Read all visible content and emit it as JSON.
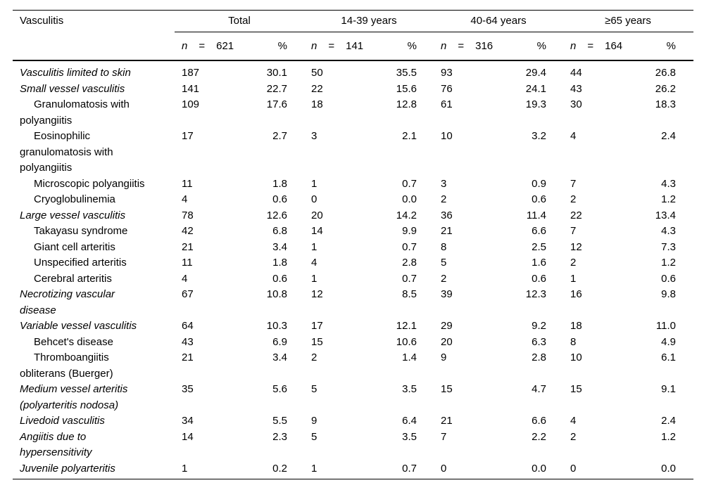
{
  "table": {
    "stub_header": "Vasculitis",
    "groups": [
      {
        "label": "Total",
        "n_label": "n",
        "eq": "=",
        "count": "621",
        "pct_label": "%"
      },
      {
        "label": "14-39 years",
        "n_label": "n",
        "eq": "=",
        "count": "141",
        "pct_label": "%"
      },
      {
        "label": "40-64 years",
        "n_label": "n",
        "eq": "=",
        "count": "316",
        "pct_label": "%"
      },
      {
        "label": "≥65 years",
        "n_label": "n",
        "eq": "=",
        "count": "164",
        "pct_label": "%"
      }
    ],
    "rows": [
      {
        "label": "Vasculitis limited to skin",
        "style": "main",
        "values": [
          "187",
          "30.1",
          "50",
          "35.5",
          "93",
          "29.4",
          "44",
          "26.8"
        ]
      },
      {
        "label": "Small vessel vasculitis",
        "style": "main",
        "values": [
          "141",
          "22.7",
          "22",
          "15.6",
          "76",
          "24.1",
          "43",
          "26.2"
        ]
      },
      {
        "label": "Granulomatosis with\npolyangiitis",
        "style": "sub",
        "values": [
          "109",
          "17.6",
          "18",
          "12.8",
          "61",
          "19.3",
          "30",
          "18.3"
        ]
      },
      {
        "label": "Eosinophilic\ngranulomatosis with\npolyangiitis",
        "style": "sub",
        "values": [
          "17",
          "2.7",
          "3",
          "2.1",
          "10",
          "3.2",
          "4",
          "2.4"
        ]
      },
      {
        "label": "Microscopic polyangiitis",
        "style": "sub",
        "values": [
          "11",
          "1.8",
          "1",
          "0.7",
          "3",
          "0.9",
          "7",
          "4.3"
        ]
      },
      {
        "label": "Cryoglobulinemia",
        "style": "sub",
        "values": [
          "4",
          "0.6",
          "0",
          "0.0",
          "2",
          "0.6",
          "2",
          "1.2"
        ]
      },
      {
        "label": "Large vessel vasculitis",
        "style": "main",
        "values": [
          "78",
          "12.6",
          "20",
          "14.2",
          "36",
          "11.4",
          "22",
          "13.4"
        ]
      },
      {
        "label": "Takayasu syndrome",
        "style": "sub",
        "values": [
          "42",
          "6.8",
          "14",
          "9.9",
          "21",
          "6.6",
          "7",
          "4.3"
        ]
      },
      {
        "label": "Giant cell arteritis",
        "style": "sub",
        "values": [
          "21",
          "3.4",
          "1",
          "0.7",
          "8",
          "2.5",
          "12",
          "7.3"
        ]
      },
      {
        "label": "Unspecified arteritis",
        "style": "sub",
        "values": [
          "11",
          "1.8",
          "4",
          "2.8",
          "5",
          "1.6",
          "2",
          "1.2"
        ]
      },
      {
        "label": "Cerebral arteritis",
        "style": "sub",
        "values": [
          "4",
          "0.6",
          "1",
          "0.7",
          "2",
          "0.6",
          "1",
          "0.6"
        ]
      },
      {
        "label": "Necrotizing vascular\ndisease",
        "style": "main",
        "values": [
          "67",
          "10.8",
          "12",
          "8.5",
          "39",
          "12.3",
          "16",
          "9.8"
        ]
      },
      {
        "label": "Variable vessel vasculitis",
        "style": "main",
        "values": [
          "64",
          "10.3",
          "17",
          "12.1",
          "29",
          "9.2",
          "18",
          "11.0"
        ]
      },
      {
        "label": "Behcet's disease",
        "style": "sub",
        "values": [
          "43",
          "6.9",
          "15",
          "10.6",
          "20",
          "6.3",
          "8",
          "4.9"
        ]
      },
      {
        "label": "Thromboangiitis\nobliterans (Buerger)",
        "style": "sub",
        "values": [
          "21",
          "3.4",
          "2",
          "1.4",
          "9",
          "2.8",
          "10",
          "6.1"
        ]
      },
      {
        "label": "Medium vessel arteritis\n(polyarteritis nodosa)",
        "style": "main",
        "values": [
          "35",
          "5.6",
          "5",
          "3.5",
          "15",
          "4.7",
          "15",
          "9.1"
        ]
      },
      {
        "label": "Livedoid vasculitis",
        "style": "main",
        "values": [
          "34",
          "5.5",
          "9",
          "6.4",
          "21",
          "6.6",
          "4",
          "2.4"
        ]
      },
      {
        "label": "Angiitis due to\nhypersensitivity",
        "style": "main",
        "values": [
          "14",
          "2.3",
          "5",
          "3.5",
          "7",
          "2.2",
          "2",
          "1.2"
        ]
      },
      {
        "label": "Juvenile polyarteritis",
        "style": "main",
        "values": [
          "1",
          "0.2",
          "1",
          "0.7",
          "0",
          "0.0",
          "0",
          "0.0"
        ]
      }
    ]
  }
}
